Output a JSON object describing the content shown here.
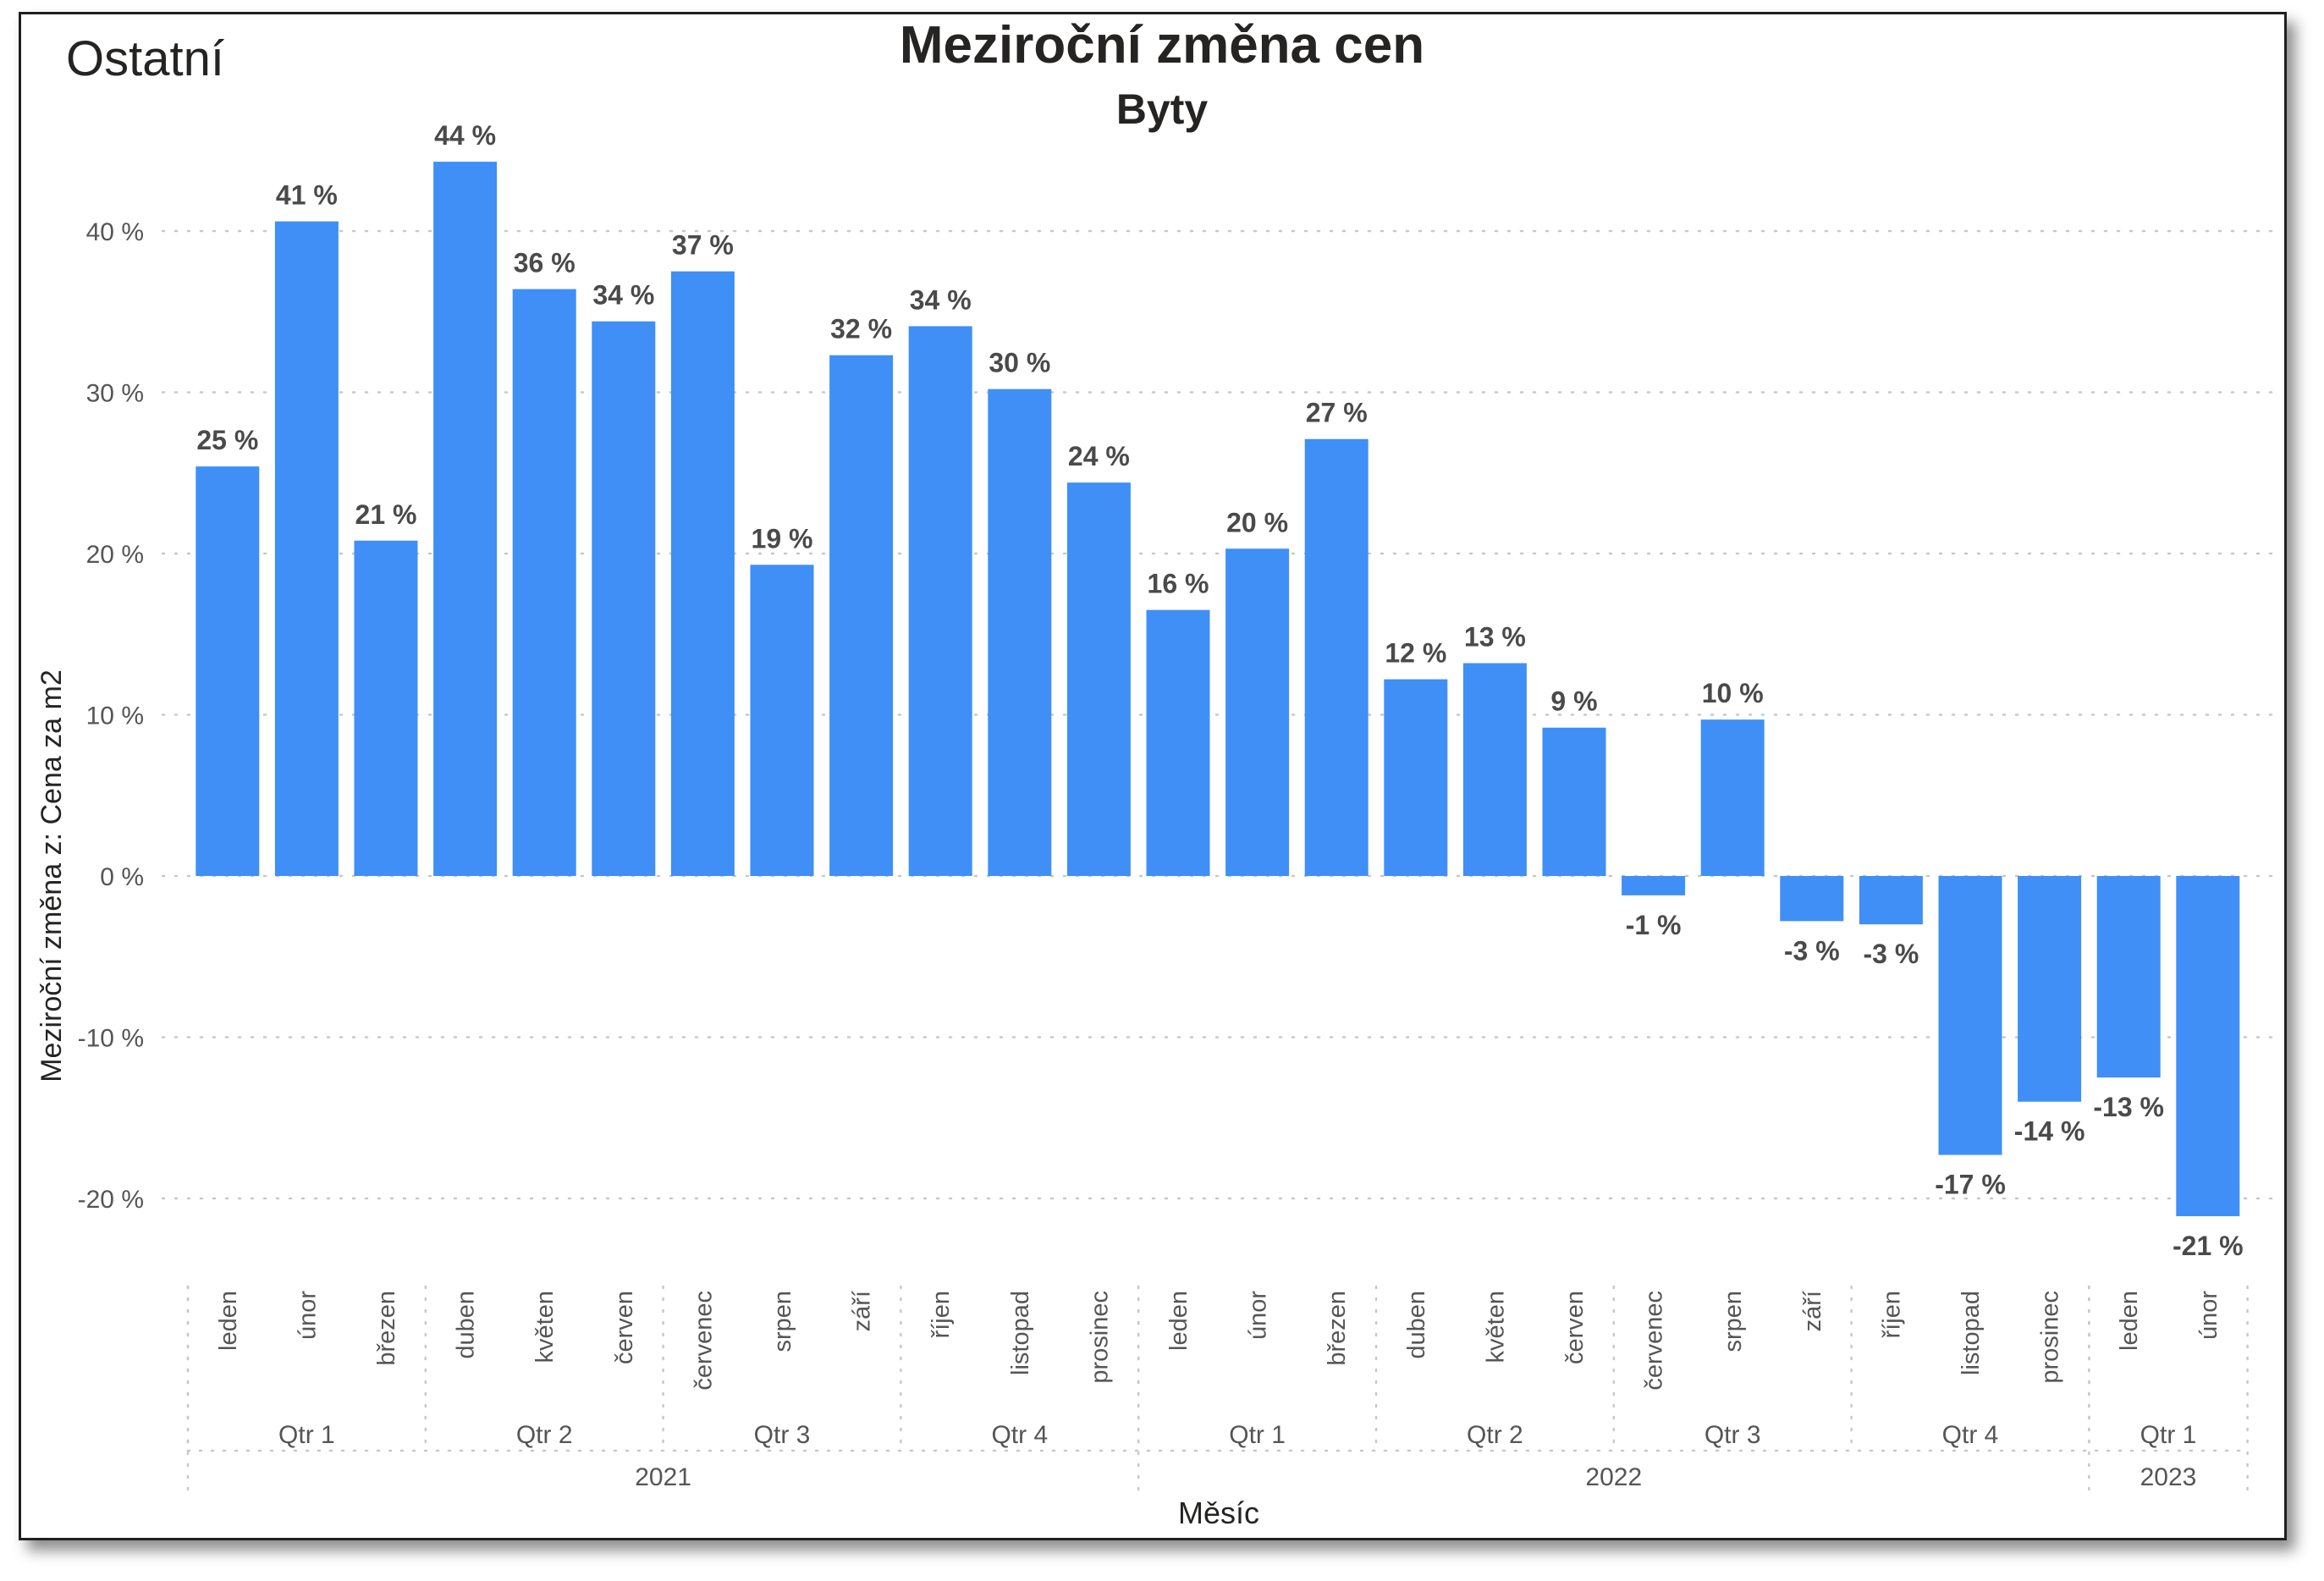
{
  "header": {
    "corner_label": "Ostatní",
    "title": "Meziroční změna cen",
    "subtitle": "Byty"
  },
  "colors": {
    "bar": "#3f8ff7",
    "text": "#252423",
    "axis_text": "#555555",
    "data_label": "#4a4a4a",
    "grid": "#c8c8c8",
    "border": "#1f1f1f"
  },
  "chart_data": {
    "type": "bar",
    "title": "Meziroční změna cen",
    "subtitle": "Byty",
    "xlabel": "Měsíc",
    "ylabel": "Meziroční změna z: Cena za m2",
    "ylim": [
      -25,
      48
    ],
    "yticks": [
      40,
      30,
      20,
      10,
      0,
      -10,
      -20
    ],
    "ytick_labels": [
      "40 %",
      "30 %",
      "20 %",
      "10 %",
      "0 %",
      "-10 %",
      "-20 %"
    ],
    "grid": true,
    "legend": "none",
    "categories": [
      "leden",
      "únor",
      "březen",
      "duben",
      "květen",
      "červen",
      "červenec",
      "srpen",
      "září",
      "říjen",
      "listopad",
      "prosinec",
      "leden",
      "únor",
      "březen",
      "duben",
      "květen",
      "červen",
      "červenec",
      "srpen",
      "září",
      "říjen",
      "listopad",
      "prosinec",
      "leden",
      "únor"
    ],
    "values": [
      25.4,
      40.6,
      20.8,
      44.3,
      36.4,
      34.4,
      37.5,
      19.3,
      32.3,
      34.1,
      30.2,
      24.4,
      16.5,
      20.3,
      27.1,
      12.2,
      13.2,
      9.2,
      -1.2,
      9.7,
      -2.8,
      -3.0,
      -17.3,
      -14.0,
      -12.5,
      -21.1
    ],
    "data_labels": [
      "25 %",
      "41 %",
      "21 %",
      "44 %",
      "36 %",
      "34 %",
      "37 %",
      "19 %",
      "32 %",
      "34 %",
      "30 %",
      "24 %",
      "16 %",
      "20 %",
      "27 %",
      "12 %",
      "13 %",
      "9 %",
      "-1 %",
      "10 %",
      "-3 %",
      "-3 %",
      "-17 %",
      "-14 %",
      "-13 %",
      "-21 %"
    ],
    "quarters": [
      {
        "label": "Qtr 1",
        "start": 0,
        "count": 3
      },
      {
        "label": "Qtr 2",
        "start": 3,
        "count": 3
      },
      {
        "label": "Qtr 3",
        "start": 6,
        "count": 3
      },
      {
        "label": "Qtr 4",
        "start": 9,
        "count": 3
      },
      {
        "label": "Qtr 1",
        "start": 12,
        "count": 3
      },
      {
        "label": "Qtr 2",
        "start": 15,
        "count": 3
      },
      {
        "label": "Qtr 3",
        "start": 18,
        "count": 3
      },
      {
        "label": "Qtr 4",
        "start": 21,
        "count": 3
      },
      {
        "label": "Qtr 1",
        "start": 24,
        "count": 2
      }
    ],
    "years": [
      {
        "label": "2021",
        "start": 0,
        "count": 12
      },
      {
        "label": "2022",
        "start": 12,
        "count": 12
      },
      {
        "label": "2023",
        "start": 24,
        "count": 2
      }
    ]
  }
}
